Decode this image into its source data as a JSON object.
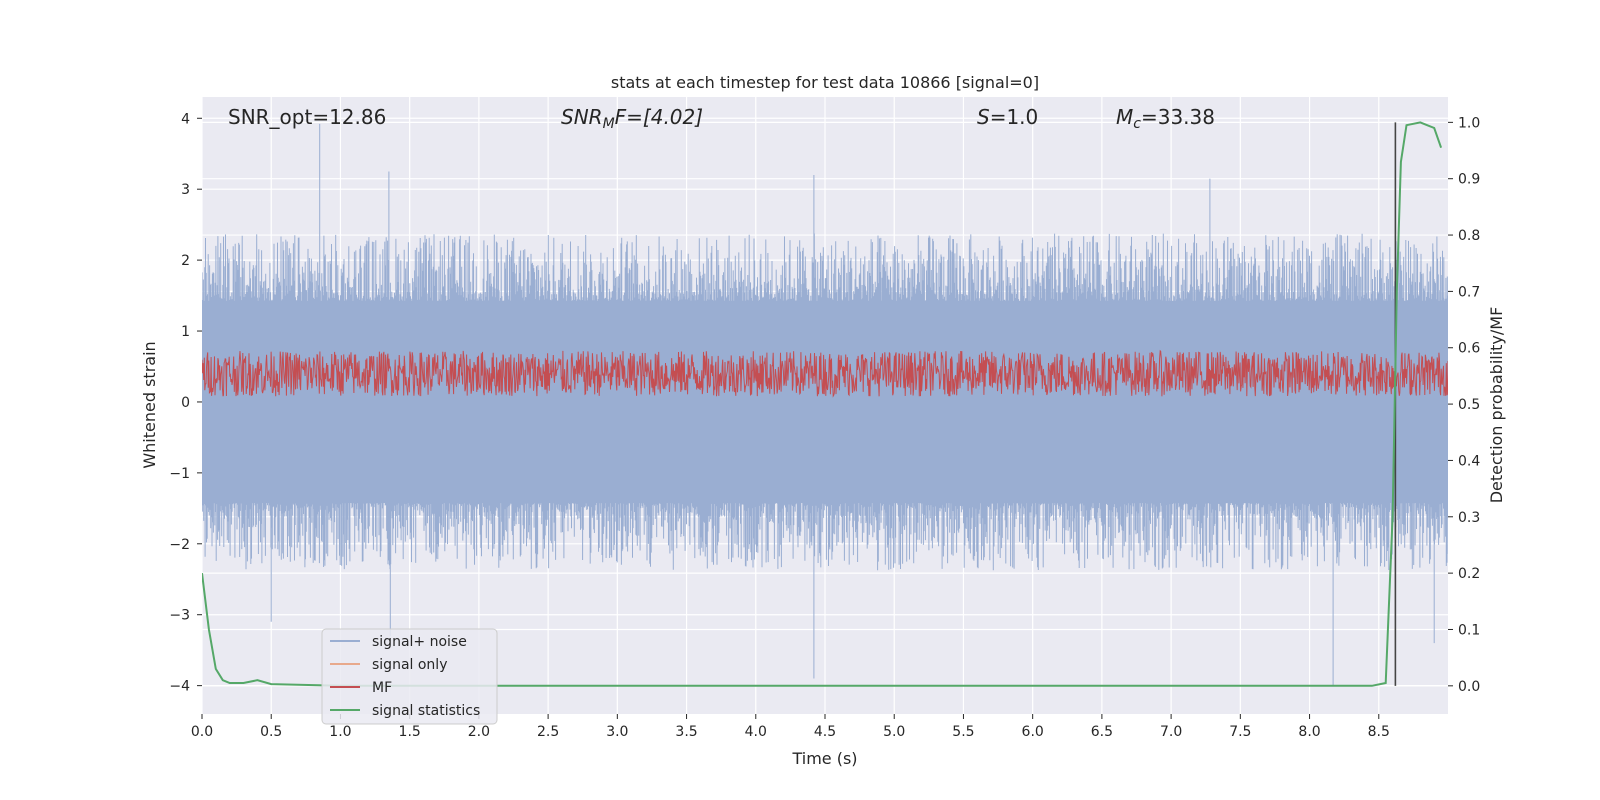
{
  "chart_data": {
    "type": "line",
    "title": "stats at each timestep for test data 10866 [signal=0]",
    "xlabel": "Time (s)",
    "ylabel": "Whitened strain",
    "ylabel_right": "Detection probability/MF",
    "xlim": [
      0.0,
      9.0
    ],
    "ylim": [
      -4.4,
      4.3
    ],
    "ylim_right": [
      -0.05,
      1.045
    ],
    "x_ticks": [
      "0.0",
      "0.5",
      "1.0",
      "1.5",
      "2.0",
      "2.5",
      "3.0",
      "3.5",
      "4.0",
      "4.5",
      "5.0",
      "5.5",
      "6.0",
      "6.5",
      "7.0",
      "7.5",
      "8.0",
      "8.5"
    ],
    "y_ticks": [
      "4",
      "3",
      "2",
      "1",
      "0",
      "−1",
      "−2",
      "−3",
      "−4"
    ],
    "y_ticks_right": [
      "1.0",
      "0.9",
      "0.8",
      "0.7",
      "0.6",
      "0.5",
      "0.4",
      "0.3",
      "0.2",
      "0.1",
      "0.0"
    ],
    "annotations": {
      "snr_opt": "SNR_opt=12.86",
      "snr_mf_main": "SNR",
      "snr_mf_sub": "M",
      "snr_mf_rest": "F=[4.02]",
      "s_main": "S",
      "s_rest": "=1.0",
      "mc_main": "M",
      "mc_sub": "c",
      "mc_rest": "=33.38"
    },
    "series": [
      {
        "name": "signal+ noise",
        "color": "#9aaed2",
        "range": [
          -1.9,
          1.9
        ],
        "spikes_to": [
          3.92,
          -3.9,
          3.25
        ]
      },
      {
        "name": "signal only",
        "color": "#e8a98c",
        "values": []
      },
      {
        "name": "MF",
        "color": "#c44e52",
        "range": [
          0.0,
          0.8
        ]
      },
      {
        "name": "signal statistics",
        "color": "#55a868",
        "x": [
          0.0,
          0.05,
          0.1,
          0.15,
          0.2,
          0.3,
          0.4,
          0.5,
          1.0,
          2.0,
          3.0,
          4.0,
          5.0,
          6.0,
          7.0,
          8.0,
          8.45,
          8.55,
          8.6,
          8.63,
          8.66,
          8.7,
          8.8,
          8.9,
          8.95
        ],
        "values": [
          0.2,
          0.1,
          0.03,
          0.01,
          0.005,
          0.005,
          0.01,
          0.003,
          0.0,
          0.0,
          0.0,
          0.0,
          0.0,
          0.0,
          0.0,
          0.0,
          0.0,
          0.005,
          0.3,
          0.7,
          0.93,
          0.995,
          1.0,
          0.99,
          0.955
        ]
      }
    ],
    "vertical_line": {
      "x": 8.62,
      "y_from": 0.0,
      "y_to": 1.0,
      "color": "#444444"
    }
  }
}
